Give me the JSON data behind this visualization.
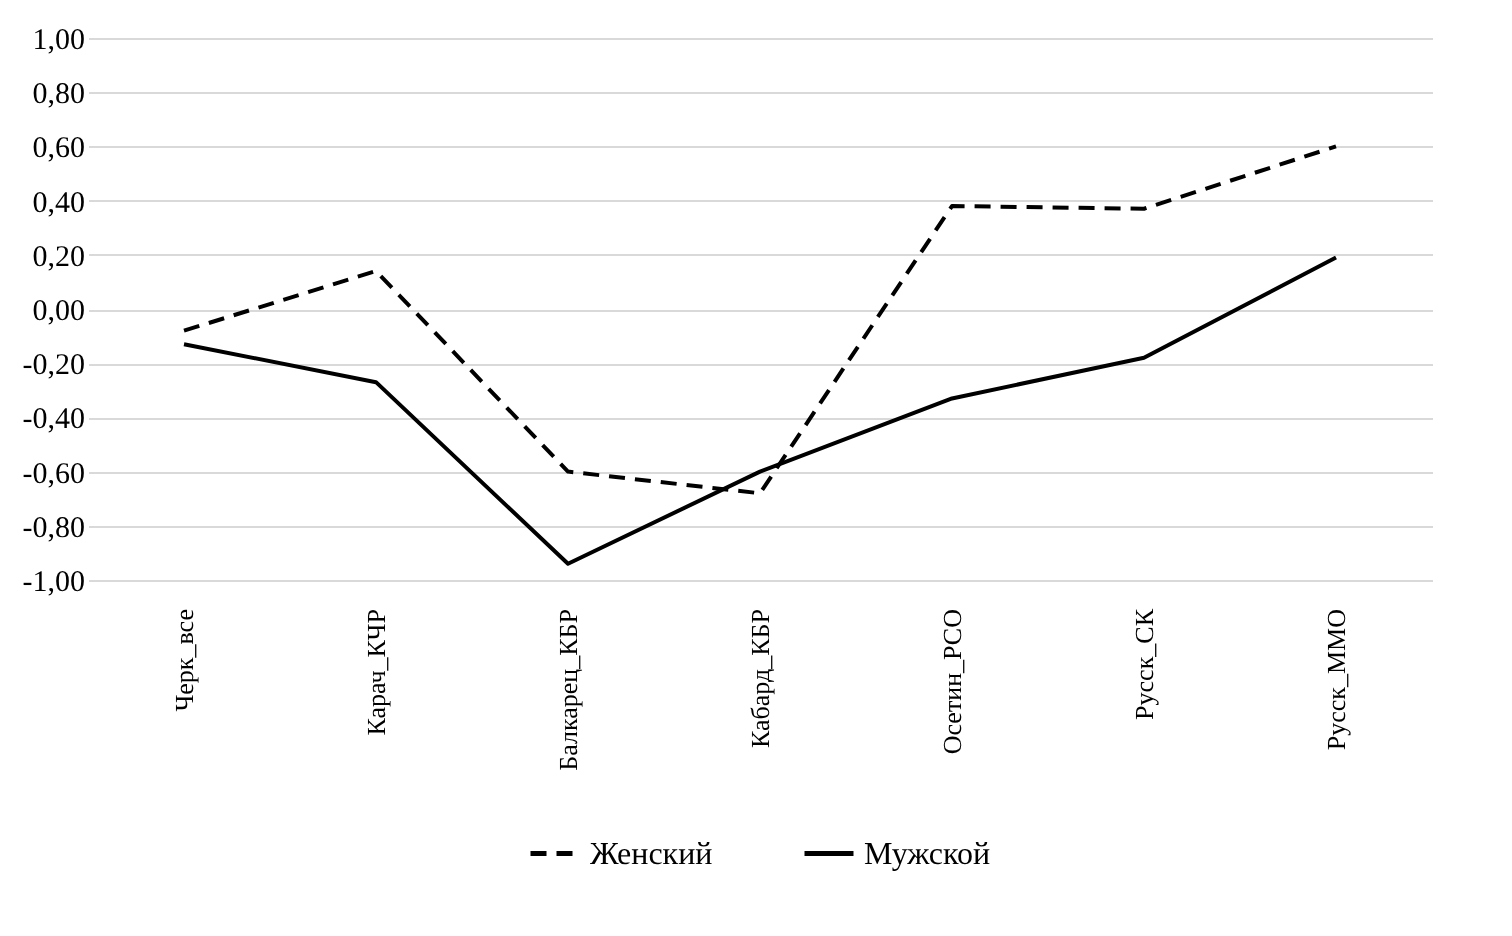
{
  "chart_data": {
    "type": "line",
    "categories": [
      "Черк_все",
      "Карач_КЧР",
      "Балкарец_КБР",
      "Кабард_КБР",
      "Осетин_РСО",
      "Русск_СК",
      "Русск_ММО"
    ],
    "series": [
      {
        "name": "Женский",
        "color": "#000000",
        "line_style": "dashed",
        "values": [
          -0.08,
          0.14,
          -0.6,
          -0.68,
          0.38,
          0.37,
          0.6
        ]
      },
      {
        "name": "Мужской",
        "color": "#000000",
        "line_style": "solid",
        "values": [
          -0.13,
          -0.27,
          -0.94,
          -0.6,
          -0.33,
          -0.18,
          0.19
        ]
      }
    ],
    "ylim": [
      -1,
      1
    ],
    "yticks": [
      {
        "value": -1,
        "label": "-1,00"
      },
      {
        "value": -0.8,
        "label": "-0,80"
      },
      {
        "value": -0.6,
        "label": "-0,60"
      },
      {
        "value": -0.4,
        "label": "-0,40"
      },
      {
        "value": -0.2,
        "label": "-0,20"
      },
      {
        "value": 0,
        "label": "0,00"
      },
      {
        "value": 0.2,
        "label": "0,20"
      },
      {
        "value": 0.4,
        "label": "0,40"
      },
      {
        "value": 0.6,
        "label": "0,60"
      },
      {
        "value": 0.8,
        "label": "0,80"
      },
      {
        "value": 1,
        "label": "1,00"
      }
    ],
    "grid": "y",
    "legend": "bottom",
    "marker": "none"
  }
}
